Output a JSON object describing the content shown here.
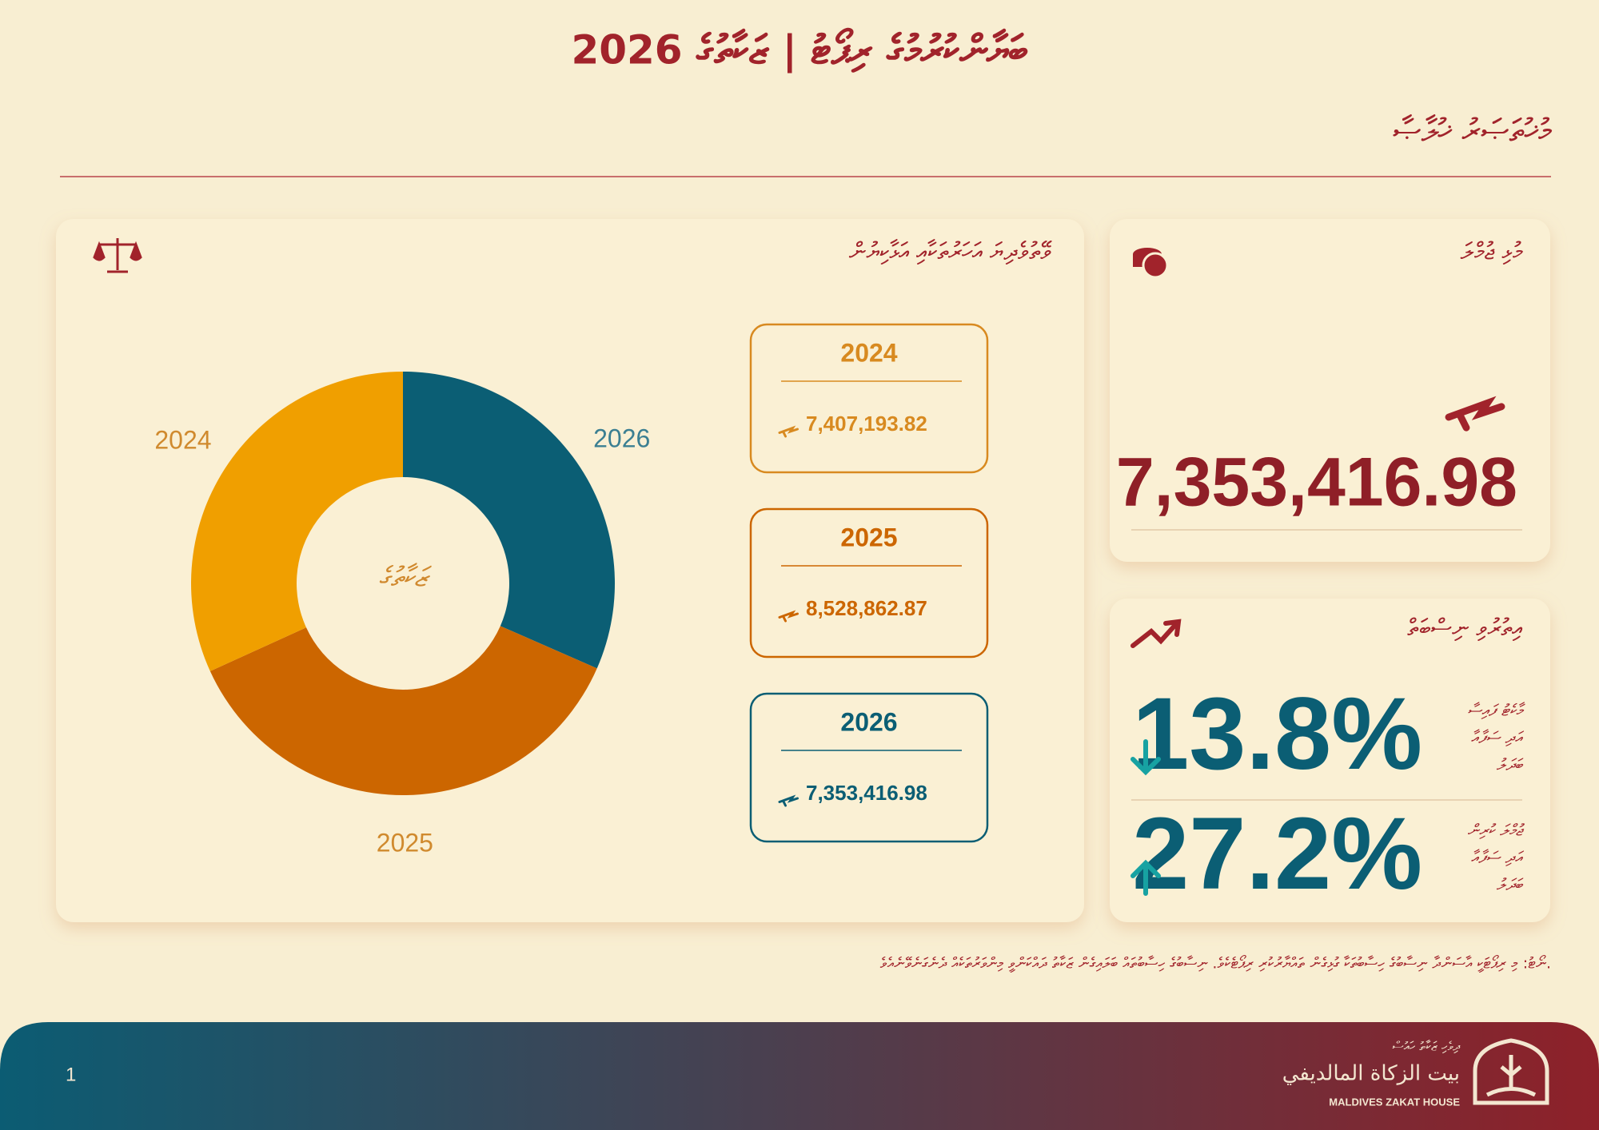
{
  "header": {
    "title": "ބަޔާންކުރުމުގެ ރިޕޯޓު | ޒަކާތުގެ 2026",
    "subtitle": "މުޚުތަޞަރު ޚުލާޞާ"
  },
  "chart_data": {
    "type": "donut",
    "title": "ވޭތުވެދިޔަ އަހަރުތަކާއި އަޅާކިޔުން",
    "center_label": "ޒަކާތުގެ",
    "categories": [
      "2024",
      "2025",
      "2026"
    ],
    "values": [
      7407193.82,
      8528862.87,
      7353416.98
    ],
    "value_labels": [
      "7,407,193.82",
      "8,528,862.87",
      "7,353,416.98"
    ],
    "colors": [
      "#f09f00",
      "#cc6600",
      "#0b5e74"
    ]
  },
  "total_card": {
    "title": "މުޅި ޖުމްލަ",
    "value": "7,353,416.98"
  },
  "change_card": {
    "title": "އިތުރުވި ނިސްބަތް",
    "items": [
      {
        "label": [
          "މާކެޓު ފައިސާ",
          "އަދި ސަފާއާ",
          "ބަދަލު"
        ],
        "value": "13.8%",
        "direction": "down"
      },
      {
        "label": [
          "ޖުމްލަ ކުރިން",
          "އަދި ސަފާއާ",
          "ބަދަލު"
        ],
        "value": "27.2%",
        "direction": "up"
      }
    ]
  },
  "footnote": "ނޯޓު: މި ރިޕޯޓަކީ އާސަންދާ ނިސާބުގެ ހިސާބުތަކާ ގުޅިގެން ތައްޔާރުކުރި ރިޕޯޓެކެވެ. ނިސާބުގެ ހިސާބުތައް ބަލައިގެން ޒަކާތު ދައްކަންވީ މިންވަރުތަކެއް ދެނެގަނެވޭނެއެވެ.",
  "footer": {
    "page": "1",
    "logo_thaana": "ދިވެހި ޒަކާތު ހައުސް",
    "logo_arabic": "بيت الزكاة المالديفي",
    "logo_english": "MALDIVES ZAKAT HOUSE"
  }
}
